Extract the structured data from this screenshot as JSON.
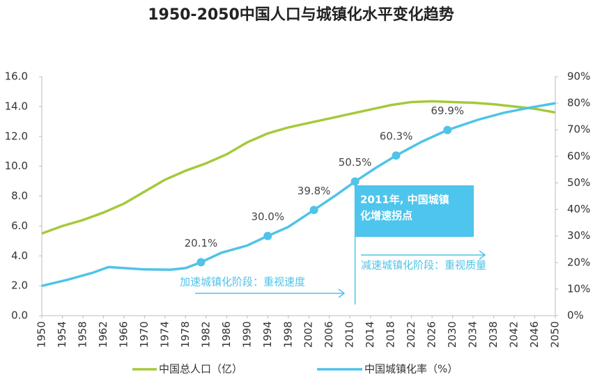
{
  "chart_data": {
    "type": "line",
    "title": "1950-2050中国人口与城镇化水平变化趋势",
    "series": [
      {
        "name": "中国总人口（亿）",
        "color": "#a5c93a",
        "x": [
          1950,
          1954,
          1958,
          1962,
          1966,
          1970,
          1974,
          1978,
          1982,
          1986,
          1990,
          1994,
          1998,
          2002,
          2006,
          2010,
          2014,
          2018,
          2022,
          2026,
          2030,
          2034,
          2038,
          2042,
          2046,
          2050
        ],
        "values": [
          5.5,
          6.0,
          6.4,
          6.9,
          7.5,
          8.3,
          9.1,
          9.7,
          10.2,
          10.8,
          11.6,
          12.2,
          12.6,
          12.9,
          13.2,
          13.5,
          13.8,
          14.1,
          14.3,
          14.35,
          14.3,
          14.25,
          14.15,
          14.0,
          13.85,
          13.6
        ]
      },
      {
        "name": "中国城镇化率（%）",
        "color": "#4fc3e8",
        "axis": "y2",
        "x": [
          1950,
          1955,
          1960,
          1963,
          1966,
          1970,
          1975,
          1978,
          1981,
          1985,
          1990,
          1994,
          1998,
          2003,
          2007,
          2011,
          2015,
          2019,
          2024,
          2029,
          2035,
          2040,
          2045,
          2050
        ],
        "values": [
          11.2,
          13.5,
          16.2,
          18.3,
          17.9,
          17.4,
          17.3,
          17.9,
          20.1,
          23.7,
          26.4,
          30.0,
          33.4,
          39.8,
          45.0,
          50.5,
          55.6,
          60.3,
          65.5,
          69.9,
          73.8,
          76.4,
          78.3,
          80.0
        ],
        "value_labels": [
          null,
          null,
          null,
          null,
          null,
          null,
          null,
          null,
          "20.1%",
          null,
          null,
          "30.0%",
          null,
          "39.8%",
          null,
          "50.5%",
          null,
          "60.3%",
          null,
          "69.9%",
          null,
          null,
          null,
          null
        ]
      }
    ],
    "xlim": [
      1950,
      2050
    ],
    "xticks": [
      1950,
      1954,
      1958,
      1962,
      1966,
      1970,
      1974,
      1978,
      1982,
      1986,
      1990,
      1994,
      1998,
      2002,
      2006,
      2010,
      2014,
      2018,
      2022,
      2026,
      2030,
      2034,
      2038,
      2042,
      2046,
      2050
    ],
    "ylim": [
      0,
      16
    ],
    "yticks": [
      {
        "value": 0,
        "label": "0.0"
      },
      {
        "value": 2,
        "label": "2.0"
      },
      {
        "value": 4,
        "label": "4.0"
      },
      {
        "value": 6,
        "label": "6.0"
      },
      {
        "value": 8,
        "label": "8.0"
      },
      {
        "value": 10,
        "label": "10.0"
      },
      {
        "value": 12,
        "label": "12.0"
      },
      {
        "value": 14,
        "label": "14.0"
      },
      {
        "value": 16,
        "label": "16.0"
      }
    ],
    "y2lim": [
      0,
      90
    ],
    "y2ticks": [
      {
        "value": 0,
        "label": "0%"
      },
      {
        "value": 10,
        "label": "10%"
      },
      {
        "value": 20,
        "label": "20%"
      },
      {
        "value": 30,
        "label": "30%"
      },
      {
        "value": 40,
        "label": "40%"
      },
      {
        "value": 50,
        "label": "50%"
      },
      {
        "value": 60,
        "label": "60%"
      },
      {
        "value": 70,
        "label": "70%"
      },
      {
        "value": 80,
        "label": "80%"
      },
      {
        "value": 90,
        "label": "90%"
      }
    ],
    "annotations": {
      "callout": [
        "2011年, 中国城镇",
        "化增速拐点"
      ],
      "phase_left": "加速城镇化阶段：重视速度",
      "phase_right": "减速城镇化阶段：重视质量"
    }
  }
}
